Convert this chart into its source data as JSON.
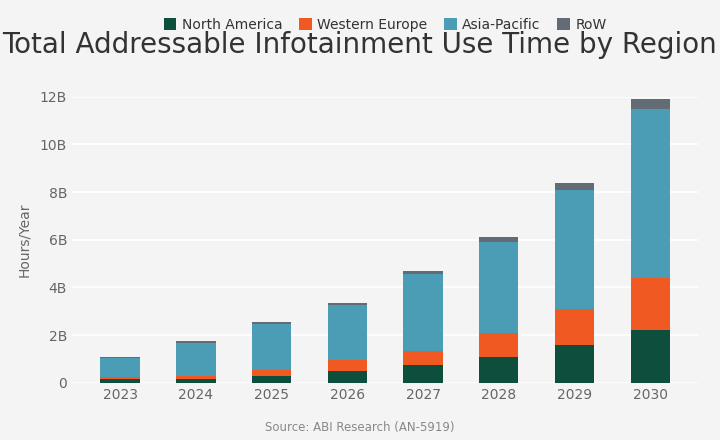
{
  "title": "Total Addressable Infotainment Use Time by Region",
  "ylabel": "Hours/Year",
  "source": "Source: ABI Research (AN-5919)",
  "years": [
    2023,
    2024,
    2025,
    2026,
    2027,
    2028,
    2029,
    2030
  ],
  "series": [
    {
      "label": "North America",
      "color": "#0d4f3c",
      "values": [
        0.15,
        0.15,
        0.3,
        0.5,
        0.75,
        1.1,
        1.6,
        2.2
      ]
    },
    {
      "label": "Western Europe",
      "color": "#f05a22",
      "values": [
        0.1,
        0.15,
        0.25,
        0.45,
        0.6,
        1.0,
        1.5,
        2.2
      ]
    },
    {
      "label": "Asia-Pacific",
      "color": "#4a9db5",
      "values": [
        0.8,
        1.35,
        1.9,
        2.3,
        3.2,
        3.8,
        5.0,
        7.1
      ]
    },
    {
      "label": "RoW",
      "color": "#636b74",
      "values": [
        0.05,
        0.1,
        0.1,
        0.1,
        0.15,
        0.2,
        0.3,
        0.4
      ]
    }
  ],
  "ylim": [
    0,
    12
  ],
  "yticks": [
    0,
    2,
    4,
    6,
    8,
    10,
    12
  ],
  "ytick_labels": [
    "0",
    "2B",
    "4B",
    "6B",
    "8B",
    "10B",
    "12B"
  ],
  "background_color": "#f4f4f4",
  "grid_color": "#ffffff",
  "title_fontsize": 20,
  "legend_fontsize": 10,
  "axis_fontsize": 10,
  "source_fontsize": 8.5
}
